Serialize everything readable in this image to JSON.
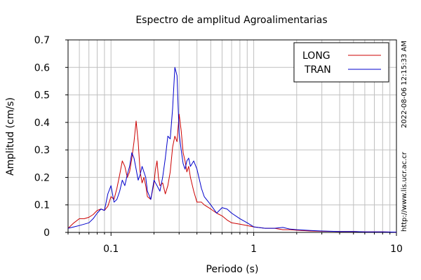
{
  "chart_data": {
    "type": "line",
    "title": "Espectro de amplitud Agroalimentarias",
    "xlabel": "Periodo (s)",
    "ylabel": "Amplitud (cm/s)",
    "x_scale": "log",
    "xlim": [
      0.05,
      10
    ],
    "ylim": [
      0,
      0.7
    ],
    "x_ticks": [
      {
        "value": 0.1,
        "label": "0.1"
      },
      {
        "value": 1,
        "label": "1"
      },
      {
        "value": 10,
        "label": "10"
      }
    ],
    "y_ticks": [
      {
        "value": 0,
        "label": "0"
      },
      {
        "value": 0.1,
        "label": "0.1"
      },
      {
        "value": 0.2,
        "label": "0.2"
      },
      {
        "value": 0.3,
        "label": "0.3"
      },
      {
        "value": 0.4,
        "label": "0.4"
      },
      {
        "value": 0.5,
        "label": "0.5"
      },
      {
        "value": 0.6,
        "label": "0.6"
      },
      {
        "value": 0.7,
        "label": "0.7"
      }
    ],
    "grid": true,
    "legend_position": "top-right",
    "series": [
      {
        "name": "LONG",
        "color": "#cc0000",
        "x": [
          0.05,
          0.055,
          0.06,
          0.065,
          0.07,
          0.075,
          0.08,
          0.085,
          0.09,
          0.095,
          0.1,
          0.105,
          0.11,
          0.115,
          0.12,
          0.125,
          0.13,
          0.135,
          0.14,
          0.145,
          0.15,
          0.155,
          0.16,
          0.165,
          0.17,
          0.175,
          0.18,
          0.19,
          0.2,
          0.205,
          0.21,
          0.215,
          0.22,
          0.23,
          0.24,
          0.25,
          0.26,
          0.27,
          0.28,
          0.29,
          0.3,
          0.31,
          0.32,
          0.33,
          0.34,
          0.35,
          0.36,
          0.38,
          0.4,
          0.43,
          0.45,
          0.5,
          0.55,
          0.6,
          0.65,
          0.7,
          0.8,
          0.9,
          1.0,
          1.2,
          1.4,
          1.6,
          1.8,
          2.0,
          2.5,
          3.0,
          4.0,
          5.0,
          6.0,
          7.0,
          8.0,
          10.0
        ],
        "values": [
          0.015,
          0.035,
          0.05,
          0.05,
          0.055,
          0.065,
          0.08,
          0.085,
          0.08,
          0.095,
          0.13,
          0.12,
          0.16,
          0.21,
          0.26,
          0.24,
          0.2,
          0.22,
          0.27,
          0.33,
          0.405,
          0.33,
          0.22,
          0.18,
          0.2,
          0.17,
          0.13,
          0.12,
          0.18,
          0.23,
          0.26,
          0.2,
          0.17,
          0.18,
          0.14,
          0.17,
          0.22,
          0.31,
          0.35,
          0.33,
          0.43,
          0.37,
          0.29,
          0.26,
          0.22,
          0.24,
          0.2,
          0.15,
          0.11,
          0.11,
          0.1,
          0.085,
          0.07,
          0.06,
          0.045,
          0.035,
          0.03,
          0.025,
          0.02,
          0.015,
          0.015,
          0.01,
          0.01,
          0.008,
          0.005,
          0.004,
          0.003,
          0.003,
          0.002,
          0.002,
          0.002,
          0.001
        ]
      },
      {
        "name": "TRAN",
        "color": "#0000cc",
        "x": [
          0.05,
          0.055,
          0.06,
          0.065,
          0.07,
          0.075,
          0.08,
          0.085,
          0.09,
          0.095,
          0.1,
          0.105,
          0.11,
          0.115,
          0.12,
          0.125,
          0.13,
          0.135,
          0.14,
          0.145,
          0.15,
          0.155,
          0.16,
          0.165,
          0.17,
          0.175,
          0.18,
          0.19,
          0.2,
          0.205,
          0.21,
          0.215,
          0.22,
          0.23,
          0.24,
          0.25,
          0.26,
          0.27,
          0.28,
          0.29,
          0.3,
          0.31,
          0.32,
          0.33,
          0.34,
          0.35,
          0.36,
          0.38,
          0.4,
          0.43,
          0.45,
          0.5,
          0.55,
          0.6,
          0.65,
          0.7,
          0.8,
          0.9,
          1.0,
          1.2,
          1.4,
          1.6,
          1.8,
          2.0,
          2.5,
          3.0,
          4.0,
          5.0,
          6.0,
          7.0,
          8.0,
          10.0
        ],
        "values": [
          0.015,
          0.02,
          0.025,
          0.03,
          0.035,
          0.05,
          0.07,
          0.085,
          0.08,
          0.14,
          0.17,
          0.11,
          0.12,
          0.15,
          0.19,
          0.17,
          0.21,
          0.24,
          0.29,
          0.27,
          0.23,
          0.19,
          0.21,
          0.24,
          0.22,
          0.2,
          0.15,
          0.12,
          0.19,
          0.18,
          0.17,
          0.16,
          0.15,
          0.2,
          0.27,
          0.35,
          0.34,
          0.45,
          0.6,
          0.57,
          0.36,
          0.3,
          0.25,
          0.23,
          0.26,
          0.27,
          0.24,
          0.26,
          0.23,
          0.16,
          0.13,
          0.1,
          0.07,
          0.09,
          0.085,
          0.07,
          0.05,
          0.035,
          0.02,
          0.015,
          0.015,
          0.018,
          0.012,
          0.01,
          0.007,
          0.005,
          0.003,
          0.003,
          0.002,
          0.002,
          0.002,
          0.001
        ]
      }
    ],
    "side_annotations": [
      "2022-08-06 12:15:33 AM",
      "http://www.lis.ucr.ac.cr"
    ]
  }
}
